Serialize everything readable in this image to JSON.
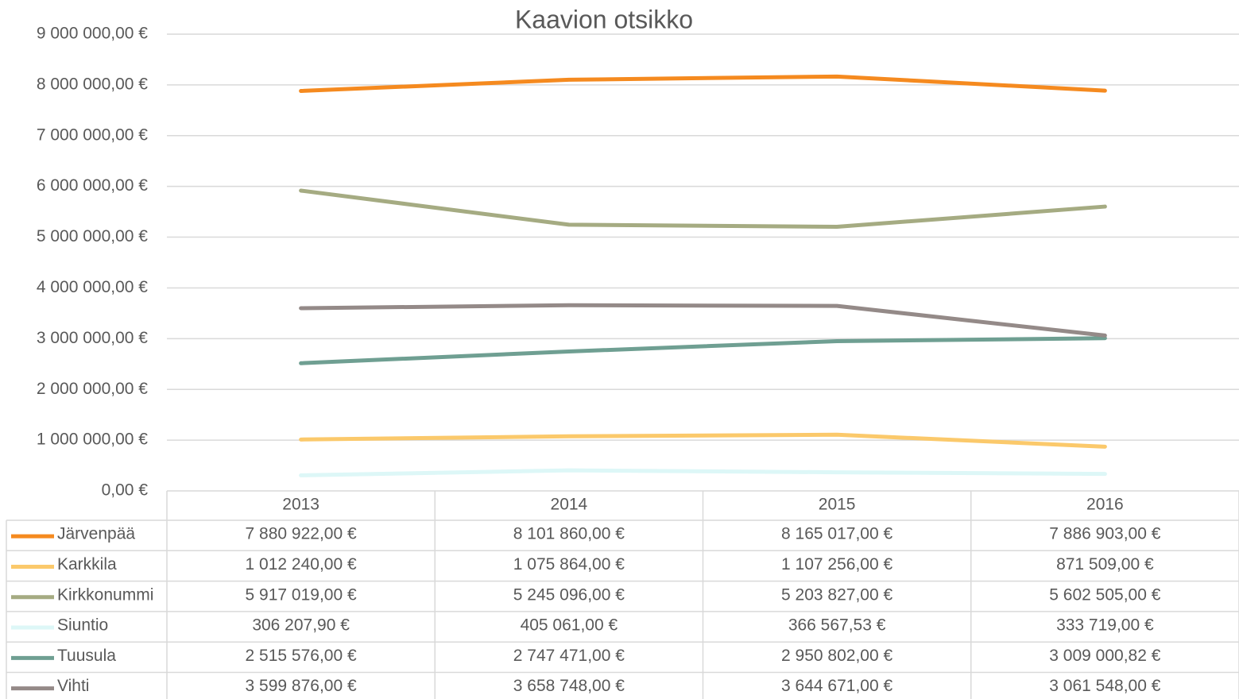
{
  "chart_data": {
    "type": "line",
    "title": "Kaavion otsikko",
    "categories": [
      "2013",
      "2014",
      "2015",
      "2016"
    ],
    "ylim": [
      0,
      9000000
    ],
    "yticks": [
      {
        "value": 0,
        "label": "0,00 €"
      },
      {
        "value": 1000000,
        "label": "1 000 000,00 €"
      },
      {
        "value": 2000000,
        "label": "2 000 000,00 €"
      },
      {
        "value": 3000000,
        "label": "3 000 000,00 €"
      },
      {
        "value": 4000000,
        "label": "4 000 000,00 €"
      },
      {
        "value": 5000000,
        "label": "5 000 000,00 €"
      },
      {
        "value": 6000000,
        "label": "6 000 000,00 €"
      },
      {
        "value": 7000000,
        "label": "7 000 000,00 €"
      },
      {
        "value": 8000000,
        "label": "8 000 000,00 €"
      },
      {
        "value": 9000000,
        "label": "9 000 000,00 €"
      }
    ],
    "grid": true,
    "series": [
      {
        "name": "Järvenpää",
        "color": "#f58a1f",
        "values": [
          7880922,
          8101860,
          8165017,
          7886903
        ],
        "value_labels": [
          "7 880 922,00 €",
          "8 101 860,00 €",
          "8 165 017,00 €",
          "7 886 903,00 €"
        ]
      },
      {
        "name": "Karkkila",
        "color": "#fbc96b",
        "values": [
          1012240,
          1075864,
          1107256,
          871509
        ],
        "value_labels": [
          "1 012 240,00 €",
          "1 075 864,00 €",
          "1 107 256,00 €",
          "871 509,00 €"
        ]
      },
      {
        "name": "Kirkkonummi",
        "color": "#a5ab82",
        "values": [
          5917019,
          5245096,
          5203827,
          5602505
        ],
        "value_labels": [
          "5 917 019,00 €",
          "5 245 096,00 €",
          "5 203 827,00 €",
          "5 602 505,00 €"
        ]
      },
      {
        "name": "Siuntio",
        "color": "#ddf7f7",
        "values": [
          306207.9,
          405061,
          366567.53,
          333719
        ],
        "value_labels": [
          "306 207,90 €",
          "405 061,00 €",
          "366 567,53 €",
          "333 719,00 €"
        ]
      },
      {
        "name": "Tuusula",
        "color": "#6f9f92",
        "values": [
          2515576,
          2747471,
          2950802,
          3009000.82
        ],
        "value_labels": [
          "2 515 576,00 €",
          "2 747 471,00 €",
          "2 950 802,00 €",
          "3 009 000,82 €"
        ]
      },
      {
        "name": "Vihti",
        "color": "#948a88",
        "values": [
          3599876,
          3658748,
          3644671,
          3061548
        ],
        "value_labels": [
          "3 599 876,00 €",
          "3 658 748,00 €",
          "3 644 671,00 €",
          "3 061 548,00 €"
        ]
      }
    ]
  }
}
